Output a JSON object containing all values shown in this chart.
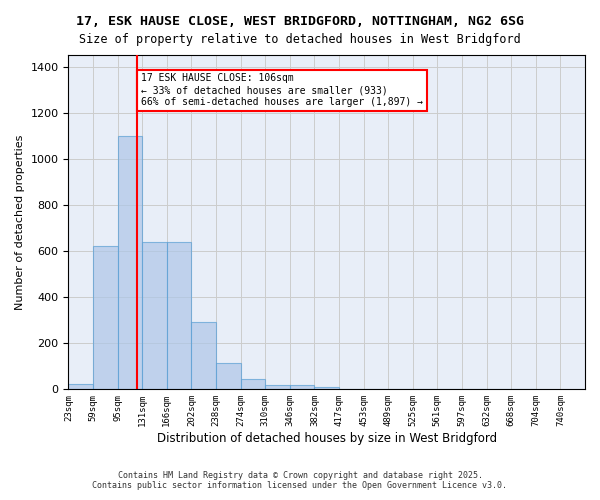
{
  "title_line1": "17, ESK HAUSE CLOSE, WEST BRIDGFORD, NOTTINGHAM, NG2 6SG",
  "title_line2": "Size of property relative to detached houses in West Bridgford",
  "bar_values": [
    25,
    620,
    1100,
    640,
    640,
    290,
    115,
    45,
    20,
    20,
    10,
    0,
    0,
    0,
    0,
    0,
    0,
    0,
    0
  ],
  "bin_labels": [
    "23sqm",
    "59sqm",
    "95sqm",
    "131sqm",
    "166sqm",
    "202sqm",
    "238sqm",
    "274sqm",
    "310sqm",
    "346sqm",
    "382sqm",
    "417sqm",
    "453sqm",
    "489sqm",
    "525sqm",
    "561sqm",
    "597sqm",
    "632sqm",
    "668sqm",
    "704sqm",
    "740sqm"
  ],
  "bar_color": "#aec6e8",
  "bar_edge_color": "#5a9fd4",
  "bar_alpha": 0.7,
  "vline_x": 106,
  "vline_color": "red",
  "annotation_text": "17 ESK HAUSE CLOSE: 106sqm\n← 33% of detached houses are smaller (933)\n66% of semi-detached houses are larger (1,897) →",
  "annotation_box_color": "white",
  "annotation_box_edge_color": "red",
  "ylabel": "Number of detached properties",
  "xlabel": "Distribution of detached houses by size in West Bridgford",
  "ylim": [
    0,
    1450
  ],
  "yticks": [
    0,
    200,
    400,
    600,
    800,
    1000,
    1200,
    1400
  ],
  "grid_color": "#cccccc",
  "bg_color": "#e8eef8",
  "footer_line1": "Contains HM Land Registry data © Crown copyright and database right 2025.",
  "footer_line2": "Contains public sector information licensed under the Open Government Licence v3.0.",
  "bin_edges": [
    5,
    41,
    77,
    113,
    149,
    185,
    221,
    257,
    293,
    329,
    365,
    401,
    437,
    473,
    509,
    545,
    581,
    617,
    653,
    689,
    725,
    761
  ],
  "property_sqm": 106
}
